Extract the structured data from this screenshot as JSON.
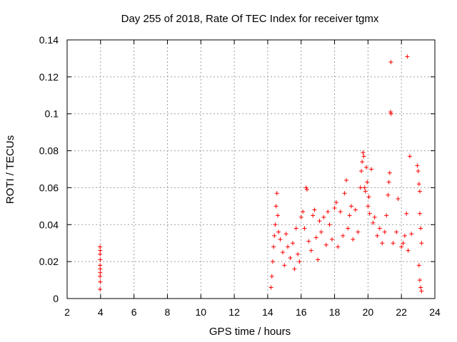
{
  "chart_data": {
    "type": "scatter",
    "title": "Day 255 of 2018, Rate Of TEC Index for receiver tgmx",
    "xlabel": "GPS time / hours",
    "ylabel": "ROTI / TECUs",
    "xlim": [
      2,
      24
    ],
    "ylim": [
      0,
      0.14
    ],
    "x_ticks": [
      2,
      4,
      6,
      8,
      10,
      12,
      14,
      16,
      18,
      20,
      22,
      24
    ],
    "x_tick_labels": [
      "2",
      "4",
      "6",
      "8",
      "10",
      "12",
      "14",
      "16",
      "18",
      "20",
      "22",
      "24"
    ],
    "y_ticks": [
      0,
      0.02,
      0.04,
      0.06,
      0.08,
      0.1,
      0.12,
      0.14
    ],
    "y_tick_labels": [
      "0",
      "0.02",
      "0.04",
      "0.06",
      "0.08",
      "0.1",
      "0.12",
      "0.14"
    ],
    "grid": true,
    "marker": "+",
    "series": [
      {
        "name": "ROTI",
        "color": "#ff0000",
        "points": [
          [
            3.97,
            0.005
          ],
          [
            3.98,
            0.009
          ],
          [
            3.97,
            0.012
          ],
          [
            3.98,
            0.016
          ],
          [
            3.97,
            0.018
          ],
          [
            3.98,
            0.021
          ],
          [
            3.97,
            0.024
          ],
          [
            3.98,
            0.026
          ],
          [
            3.97,
            0.028
          ],
          [
            3.98,
            0.014
          ],
          [
            14.2,
            0.006
          ],
          [
            14.25,
            0.012
          ],
          [
            14.3,
            0.02
          ],
          [
            14.35,
            0.028
          ],
          [
            14.4,
            0.034
          ],
          [
            14.45,
            0.04
          ],
          [
            14.5,
            0.05
          ],
          [
            14.55,
            0.057
          ],
          [
            14.6,
            0.045
          ],
          [
            14.65,
            0.036
          ],
          [
            14.75,
            0.032
          ],
          [
            14.9,
            0.025
          ],
          [
            15.0,
            0.018
          ],
          [
            15.1,
            0.035
          ],
          [
            15.2,
            0.028
          ],
          [
            15.35,
            0.022
          ],
          [
            15.5,
            0.03
          ],
          [
            15.6,
            0.016
          ],
          [
            15.7,
            0.038
          ],
          [
            15.8,
            0.024
          ],
          [
            15.9,
            0.02
          ],
          [
            16.0,
            0.044
          ],
          [
            16.1,
            0.047
          ],
          [
            16.2,
            0.038
          ],
          [
            16.3,
            0.06
          ],
          [
            16.35,
            0.059
          ],
          [
            16.45,
            0.031
          ],
          [
            16.6,
            0.026
          ],
          [
            16.7,
            0.045
          ],
          [
            16.8,
            0.048
          ],
          [
            16.9,
            0.033
          ],
          [
            17.0,
            0.021
          ],
          [
            17.1,
            0.042
          ],
          [
            17.2,
            0.036
          ],
          [
            17.35,
            0.044
          ],
          [
            17.5,
            0.029
          ],
          [
            17.6,
            0.047
          ],
          [
            17.7,
            0.04
          ],
          [
            17.85,
            0.032
          ],
          [
            18.0,
            0.049
          ],
          [
            18.1,
            0.052
          ],
          [
            18.2,
            0.028
          ],
          [
            18.35,
            0.047
          ],
          [
            18.5,
            0.034
          ],
          [
            18.6,
            0.057
          ],
          [
            18.7,
            0.064
          ],
          [
            18.8,
            0.038
          ],
          [
            18.9,
            0.045
          ],
          [
            19.0,
            0.05
          ],
          [
            19.1,
            0.032
          ],
          [
            19.25,
            0.048
          ],
          [
            19.4,
            0.036
          ],
          [
            19.55,
            0.06
          ],
          [
            19.6,
            0.069
          ],
          [
            19.65,
            0.074
          ],
          [
            19.7,
            0.079
          ],
          [
            19.75,
            0.077
          ],
          [
            19.8,
            0.06
          ],
          [
            19.85,
            0.058
          ],
          [
            19.9,
            0.071
          ],
          [
            19.95,
            0.063
          ],
          [
            20.0,
            0.05
          ],
          [
            20.05,
            0.055
          ],
          [
            20.1,
            0.046
          ],
          [
            20.2,
            0.07
          ],
          [
            20.3,
            0.041
          ],
          [
            20.4,
            0.044
          ],
          [
            20.55,
            0.034
          ],
          [
            20.7,
            0.038
          ],
          [
            20.85,
            0.03
          ],
          [
            21.0,
            0.036
          ],
          [
            21.1,
            0.045
          ],
          [
            21.2,
            0.056
          ],
          [
            21.25,
            0.063
          ],
          [
            21.3,
            0.068
          ],
          [
            21.35,
            0.101
          ],
          [
            21.38,
            0.1
          ],
          [
            21.37,
            0.128
          ],
          [
            21.5,
            0.03
          ],
          [
            21.7,
            0.036
          ],
          [
            21.8,
            0.054
          ],
          [
            22.0,
            0.028
          ],
          [
            22.1,
            0.03
          ],
          [
            22.2,
            0.034
          ],
          [
            22.3,
            0.046
          ],
          [
            22.35,
            0.131
          ],
          [
            22.4,
            0.026
          ],
          [
            22.5,
            0.077
          ],
          [
            22.6,
            0.035
          ],
          [
            22.95,
            0.072
          ],
          [
            23.0,
            0.069
          ],
          [
            23.05,
            0.062
          ],
          [
            23.1,
            0.058
          ],
          [
            23.1,
            0.046
          ],
          [
            23.15,
            0.038
          ],
          [
            23.2,
            0.03
          ],
          [
            23.05,
            0.018
          ],
          [
            23.1,
            0.01
          ],
          [
            23.15,
            0.006
          ],
          [
            23.2,
            0.004
          ]
        ]
      }
    ]
  }
}
